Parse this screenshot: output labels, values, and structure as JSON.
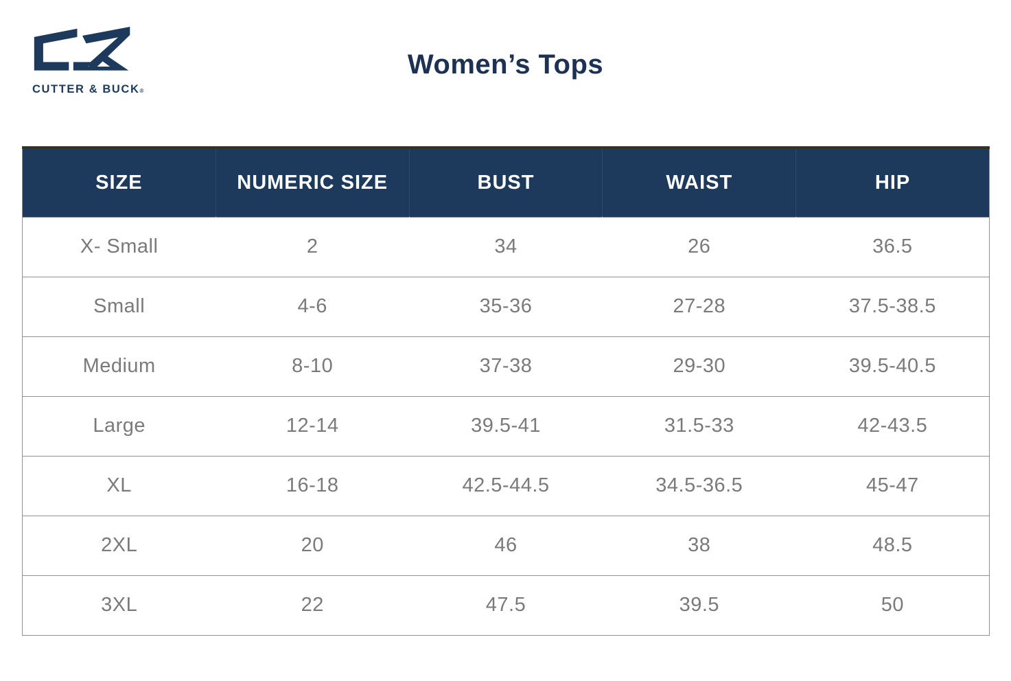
{
  "brand": {
    "name": "CUTTER & BUCK",
    "registered": "®",
    "logo_icon": "cutter-buck-cb-monogram"
  },
  "title": "Women’s Tops",
  "colors": {
    "navy": "#1d3a5c",
    "title_navy": "#1d3153",
    "header_text": "#ffffff",
    "body_text": "#7a7a7a",
    "border": "#8f8f8f",
    "accent_top": "#34312c"
  },
  "chart_data": {
    "type": "table",
    "title": "Women’s Tops",
    "columns": [
      "SIZE",
      "NUMERIC SIZE",
      "BUST",
      "WAIST",
      "HIP"
    ],
    "rows": [
      [
        "X- Small",
        "2",
        "34",
        "26",
        "36.5"
      ],
      [
        "Small",
        "4-6",
        "35-36",
        "27-28",
        "37.5-38.5"
      ],
      [
        "Medium",
        "8-10",
        "37-38",
        "29-30",
        "39.5-40.5"
      ],
      [
        "Large",
        "12-14",
        "39.5-41",
        "31.5-33",
        "42-43.5"
      ],
      [
        "XL",
        "16-18",
        "42.5-44.5",
        "34.5-36.5",
        "45-47"
      ],
      [
        "2XL",
        "20",
        "46",
        "38",
        "48.5"
      ],
      [
        "3XL",
        "22",
        "47.5",
        "39.5",
        "50"
      ]
    ]
  }
}
